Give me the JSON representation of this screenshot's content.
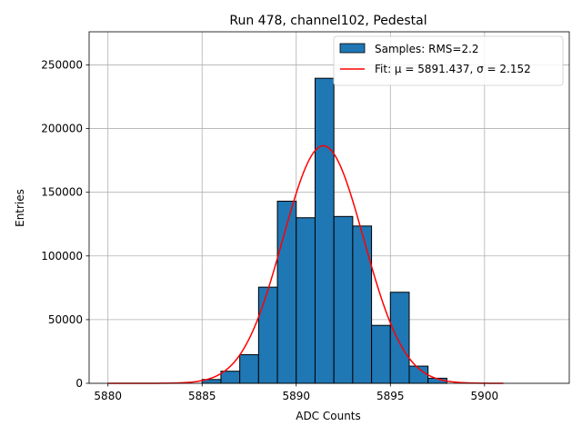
{
  "chart_data": {
    "type": "bar",
    "title": "Run 478, channel102, Pedestal",
    "xlabel": "ADC Counts",
    "ylabel": "Entries",
    "xlim": [
      5879.0,
      5904.5
    ],
    "ylim": [
      0,
      276000
    ],
    "grid": true,
    "legend_position": "top-right",
    "x_ticks": [
      5880,
      5885,
      5890,
      5895,
      5900
    ],
    "y_ticks": [
      0,
      50000,
      100000,
      150000,
      200000,
      250000
    ],
    "histogram": {
      "name": "Samples: RMS=2.2",
      "color": "#1f77b4",
      "bin_edges": [
        5885,
        5886,
        5887,
        5888,
        5889,
        5890,
        5891,
        5892,
        5893,
        5894,
        5895,
        5896,
        5897,
        5898
      ],
      "counts": [
        3000,
        9500,
        22500,
        75500,
        143000,
        130000,
        239500,
        131000,
        123500,
        45500,
        71500,
        13500,
        4000
      ]
    },
    "fit": {
      "name": "Fit: μ = 5891.437, σ = 2.152",
      "color": "#ff0000",
      "mu": 5891.437,
      "sigma": 2.152,
      "amplitude": 186500,
      "x_range": [
        5880,
        5901
      ]
    },
    "legend": [
      {
        "label": "Samples: RMS=2.2",
        "kind": "patch",
        "color": "#1f77b4"
      },
      {
        "label": "Fit: μ = 5891.437, σ = 2.152",
        "kind": "line",
        "color": "#ff0000"
      }
    ]
  }
}
